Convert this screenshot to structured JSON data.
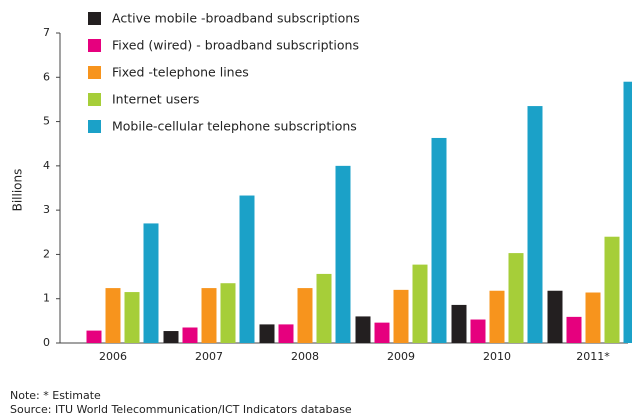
{
  "chart_data": {
    "type": "bar",
    "y_label": "Billions",
    "categories": [
      "2006",
      "2007",
      "2008",
      "2009",
      "2010",
      "2011*"
    ],
    "series": [
      {
        "name": "Active mobile -broadband subscriptions",
        "color": "#231f20",
        "values": [
          null,
          0.27,
          0.42,
          0.6,
          0.86,
          1.18
        ]
      },
      {
        "name": "Fixed (wired) - broadband subscriptions",
        "color": "#e6007e",
        "values": [
          0.28,
          0.35,
          0.42,
          0.46,
          0.53,
          0.59
        ]
      },
      {
        "name": "Fixed -telephone lines",
        "color": "#f7941d",
        "values": [
          1.24,
          1.24,
          1.24,
          1.2,
          1.18,
          1.14
        ]
      },
      {
        "name": "Internet users",
        "color": "#a6ce39",
        "values": [
          1.15,
          1.35,
          1.56,
          1.77,
          2.03,
          2.4
        ]
      },
      {
        "name": "Mobile-cellular telephone subscriptions",
        "color": "#1ba1c8",
        "values": [
          2.7,
          3.33,
          4.0,
          4.63,
          5.35,
          5.9
        ]
      }
    ],
    "ylim": [
      0,
      7
    ],
    "yticks": [
      0,
      1,
      2,
      3,
      4,
      5,
      6,
      7
    ],
    "legend": "top-left",
    "notes": [
      "Note: * Estimate",
      "Source: ITU World Telecommunication/ICT Indicators database"
    ]
  }
}
